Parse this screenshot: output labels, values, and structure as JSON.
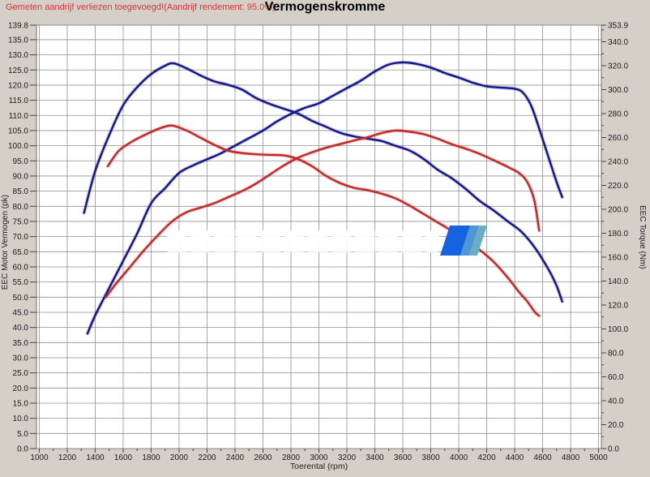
{
  "header": {
    "notice": "Gemeten aandrijf verliezen toegevoegd!(Aandrijf rendement: 95.0%)",
    "title": "Vermogenskromme"
  },
  "colors": {
    "background": "#d4d0c8",
    "plot_bg": "#ffffff",
    "grid": "#8f8f8f",
    "plot_border": "#6f6f6f",
    "tick_text": "#1c1c1c",
    "curve_blue": "#15158a",
    "curve_red": "#c32828",
    "notice_red": "#dd3333",
    "logo_stripes": [
      "#1663e2",
      "#4e96d6",
      "#69aec5"
    ]
  },
  "chart_data": {
    "type": "line",
    "title": "Vermogenskromme",
    "xlabel": "Toerental (rpm)",
    "ylabel_left": "EEC Motor Vermogen (pk)",
    "ylabel_right": "EEC Torque (Nm)",
    "grid": true,
    "legend": "none",
    "x_range": [
      1000,
      5000
    ],
    "x_ticks": [
      1000,
      1200,
      1400,
      1600,
      1800,
      2000,
      2200,
      2400,
      2600,
      2800,
      3000,
      3200,
      3400,
      3600,
      3800,
      4000,
      4200,
      4400,
      4600,
      4800,
      5000
    ],
    "x_minor_ticks": [
      1100,
      1300,
      1500,
      1700,
      1900,
      2100,
      2300,
      2500,
      2700,
      2900,
      3100,
      3300,
      3500,
      3700,
      3900,
      4100,
      4300,
      4500,
      4700,
      4900
    ],
    "y_left_range": [
      0,
      139.8
    ],
    "y_left_ticks": [
      139.8,
      135,
      130,
      125,
      120,
      115,
      110,
      105,
      100,
      95,
      90,
      85,
      80,
      75,
      70,
      65,
      60,
      55,
      50,
      45,
      40,
      35,
      30,
      25,
      20,
      15,
      10,
      5,
      0
    ],
    "y_right_range": [
      0,
      353.9
    ],
    "y_right_ticks": [
      353.9,
      340,
      320,
      300,
      280,
      260,
      240,
      220,
      200,
      180,
      160,
      140,
      120,
      100,
      80,
      60,
      40,
      20,
      0
    ],
    "y_right_minor_ticks": [
      350,
      330,
      310,
      290,
      270,
      250,
      230,
      210,
      190,
      170,
      150,
      130,
      110,
      90,
      70,
      50,
      30,
      10
    ],
    "series": [
      {
        "name": "power-blue-tuned",
        "axis": "left",
        "unit": "pk",
        "color": "#15158a",
        "points": [
          [
            1345,
            38
          ],
          [
            1400,
            44
          ],
          [
            1500,
            53
          ],
          [
            1600,
            62
          ],
          [
            1700,
            71
          ],
          [
            1800,
            81
          ],
          [
            1900,
            86
          ],
          [
            2000,
            91
          ],
          [
            2100,
            93.5
          ],
          [
            2200,
            95.5
          ],
          [
            2300,
            97.5
          ],
          [
            2400,
            100
          ],
          [
            2500,
            102.5
          ],
          [
            2600,
            105
          ],
          [
            2700,
            108
          ],
          [
            2800,
            110.5
          ],
          [
            2900,
            112.5
          ],
          [
            3000,
            114
          ],
          [
            3100,
            116.5
          ],
          [
            3200,
            119
          ],
          [
            3300,
            121.5
          ],
          [
            3400,
            124.5
          ],
          [
            3500,
            126.8
          ],
          [
            3600,
            127.5
          ],
          [
            3700,
            127
          ],
          [
            3800,
            125.8
          ],
          [
            3900,
            124
          ],
          [
            4000,
            122.5
          ],
          [
            4100,
            120.8
          ],
          [
            4200,
            119.6
          ],
          [
            4300,
            119.2
          ],
          [
            4400,
            118.8
          ],
          [
            4460,
            117.5
          ],
          [
            4520,
            113
          ],
          [
            4580,
            105
          ],
          [
            4640,
            96.5
          ],
          [
            4700,
            88
          ],
          [
            4740,
            83
          ]
        ]
      },
      {
        "name": "torque-blue-tuned",
        "axis": "right",
        "unit": "Nm",
        "color": "#15158a",
        "points": [
          [
            1320,
            197
          ],
          [
            1400,
            232
          ],
          [
            1500,
            262
          ],
          [
            1600,
            287
          ],
          [
            1700,
            302
          ],
          [
            1800,
            313
          ],
          [
            1900,
            320
          ],
          [
            1960,
            322
          ],
          [
            2050,
            318
          ],
          [
            2150,
            312
          ],
          [
            2250,
            307
          ],
          [
            2350,
            304
          ],
          [
            2450,
            300
          ],
          [
            2550,
            293
          ],
          [
            2650,
            288
          ],
          [
            2750,
            284
          ],
          [
            2850,
            280
          ],
          [
            2950,
            274
          ],
          [
            3050,
            269
          ],
          [
            3150,
            264
          ],
          [
            3250,
            261
          ],
          [
            3350,
            259
          ],
          [
            3450,
            257
          ],
          [
            3550,
            253
          ],
          [
            3650,
            249
          ],
          [
            3750,
            242
          ],
          [
            3850,
            233
          ],
          [
            3950,
            226
          ],
          [
            4050,
            217
          ],
          [
            4150,
            207
          ],
          [
            4250,
            199
          ],
          [
            4350,
            190
          ],
          [
            4450,
            181
          ],
          [
            4550,
            167
          ],
          [
            4650,
            148
          ],
          [
            4700,
            136
          ],
          [
            4740,
            123
          ]
        ]
      },
      {
        "name": "power-red-original",
        "axis": "left",
        "unit": "pk",
        "color": "#c32828",
        "points": [
          [
            1477,
            50
          ],
          [
            1550,
            54.5
          ],
          [
            1650,
            60
          ],
          [
            1750,
            65.5
          ],
          [
            1850,
            70.5
          ],
          [
            1950,
            75
          ],
          [
            2050,
            78
          ],
          [
            2150,
            79.5
          ],
          [
            2250,
            81
          ],
          [
            2350,
            83
          ],
          [
            2450,
            85
          ],
          [
            2550,
            87.5
          ],
          [
            2650,
            90.5
          ],
          [
            2750,
            93.5
          ],
          [
            2850,
            96
          ],
          [
            2950,
            97.8
          ],
          [
            3050,
            99.3
          ],
          [
            3150,
            100.5
          ],
          [
            3250,
            101.7
          ],
          [
            3350,
            102.8
          ],
          [
            3450,
            104.2
          ],
          [
            3550,
            105
          ],
          [
            3650,
            104.6
          ],
          [
            3750,
            103.8
          ],
          [
            3850,
            102.3
          ],
          [
            3950,
            100.5
          ],
          [
            4050,
            99
          ],
          [
            4150,
            97.3
          ],
          [
            4250,
            95.2
          ],
          [
            4350,
            93
          ],
          [
            4430,
            91
          ],
          [
            4490,
            88
          ],
          [
            4540,
            82
          ],
          [
            4575,
            72
          ]
        ]
      },
      {
        "name": "torque-red-original",
        "axis": "right",
        "unit": "Nm",
        "color": "#c32828",
        "points": [
          [
            1490,
            236
          ],
          [
            1570,
            249
          ],
          [
            1670,
            257
          ],
          [
            1770,
            263
          ],
          [
            1870,
            268
          ],
          [
            1950,
            270
          ],
          [
            2050,
            266
          ],
          [
            2150,
            260
          ],
          [
            2250,
            254
          ],
          [
            2350,
            249
          ],
          [
            2450,
            247
          ],
          [
            2550,
            246
          ],
          [
            2650,
            245.5
          ],
          [
            2750,
            245
          ],
          [
            2850,
            242
          ],
          [
            2950,
            236
          ],
          [
            3050,
            228
          ],
          [
            3150,
            222
          ],
          [
            3250,
            218
          ],
          [
            3350,
            216
          ],
          [
            3450,
            213
          ],
          [
            3550,
            209
          ],
          [
            3650,
            203
          ],
          [
            3750,
            196
          ],
          [
            3850,
            189
          ],
          [
            3950,
            182
          ],
          [
            4050,
            174
          ],
          [
            4150,
            166
          ],
          [
            4250,
            156
          ],
          [
            4350,
            143
          ],
          [
            4430,
            131
          ],
          [
            4490,
            123
          ],
          [
            4545,
            114
          ],
          [
            4575,
            111
          ]
        ]
      }
    ]
  },
  "watermark": {
    "band_style": "white illegible bold text",
    "logo": "three-stripe blue parallelogram"
  }
}
